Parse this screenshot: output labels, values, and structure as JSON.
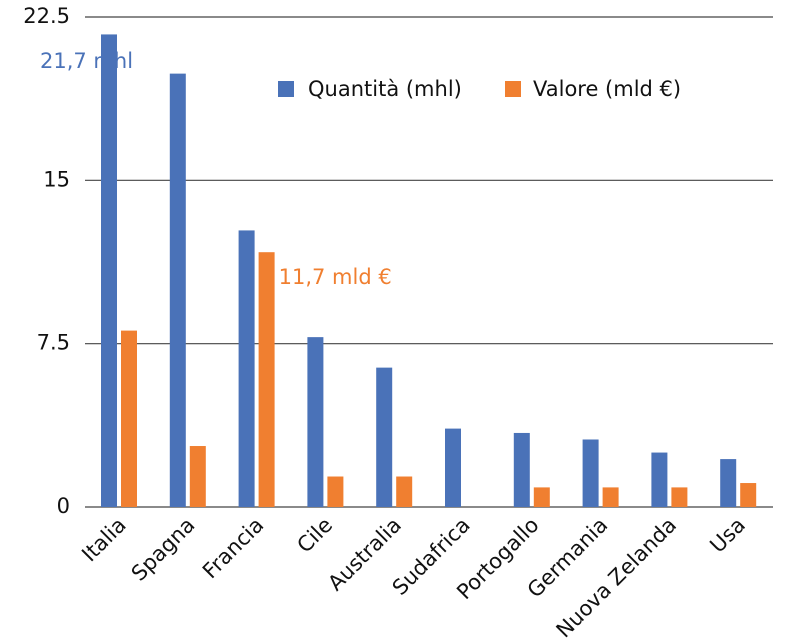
{
  "chart_data": {
    "type": "bar",
    "categories": [
      "Italia",
      "Spagna",
      "Francia",
      "Cile",
      "Australia",
      "Sudafrica",
      "Portogallo",
      "Germania",
      "Nuova Zelanda",
      "Usa"
    ],
    "series": [
      {
        "name": "Quantità (mhl)",
        "color": "#4a72b8",
        "values": [
          21.7,
          19.9,
          12.7,
          7.8,
          6.4,
          3.6,
          3.4,
          3.1,
          2.5,
          2.2
        ],
        "value_labels": [
          "21,7 mhl",
          null,
          null,
          null,
          null,
          null,
          null,
          null,
          null,
          null
        ]
      },
      {
        "name": "Valore (mld €)",
        "color": "#f07f30",
        "values": [
          8.1,
          2.8,
          11.7,
          1.4,
          1.4,
          null,
          0.9,
          0.9,
          0.9,
          1.1
        ],
        "value_labels": [
          null,
          null,
          "11,7 mld €",
          null,
          null,
          null,
          null,
          null,
          null,
          null
        ]
      }
    ],
    "ylim": [
      0,
      22.5
    ],
    "yticks": [
      0,
      7.5,
      15,
      22.5
    ],
    "grid": true
  }
}
